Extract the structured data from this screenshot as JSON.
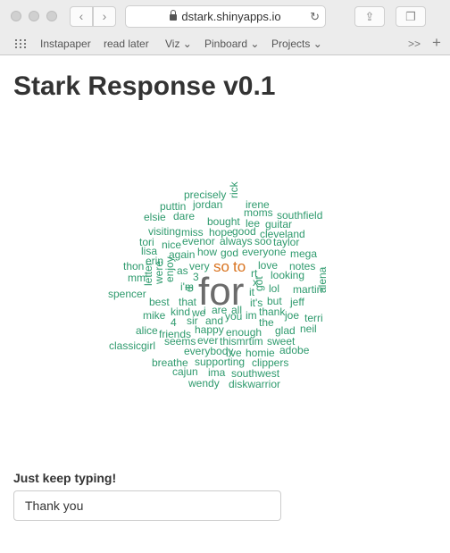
{
  "browser": {
    "address": "dstark.shinyapps.io",
    "bookmarks": [
      {
        "label": "Instapaper",
        "menu": false
      },
      {
        "label": "read later",
        "menu": false
      },
      {
        "label": "Viz",
        "menu": true
      },
      {
        "label": "Pinboard",
        "menu": true
      },
      {
        "label": "Projects",
        "menu": true
      }
    ],
    "overflow_glyph": ">>",
    "newtab_glyph": "+"
  },
  "page": {
    "title": "Stark Response v0.1",
    "input_label": "Just keep typing!",
    "input_value": "Thank you"
  },
  "colors": {
    "cloud_green": "#2e9a6d",
    "cloud_orange": "#d9731f",
    "cloud_gray": "#6b6b6b"
  },
  "chart_data": {
    "type": "wordcloud",
    "words": [
      {
        "text": "for",
        "tier": "top"
      },
      {
        "text": "so",
        "tier": "high"
      },
      {
        "text": "to",
        "tier": "high"
      },
      {
        "text": "precisely",
        "tier": "normal"
      },
      {
        "text": "puttin",
        "tier": "normal"
      },
      {
        "text": "jordan",
        "tier": "normal"
      },
      {
        "text": "rick",
        "tier": "normal"
      },
      {
        "text": "irene",
        "tier": "normal"
      },
      {
        "text": "elsie",
        "tier": "normal"
      },
      {
        "text": "dare",
        "tier": "normal"
      },
      {
        "text": "bought",
        "tier": "normal"
      },
      {
        "text": "moms",
        "tier": "normal"
      },
      {
        "text": "southfield",
        "tier": "normal"
      },
      {
        "text": "lee",
        "tier": "normal"
      },
      {
        "text": "guitar",
        "tier": "normal"
      },
      {
        "text": "visiting",
        "tier": "normal"
      },
      {
        "text": "miss",
        "tier": "normal"
      },
      {
        "text": "hope",
        "tier": "normal"
      },
      {
        "text": "good",
        "tier": "normal"
      },
      {
        "text": "cleveland",
        "tier": "normal"
      },
      {
        "text": "tori",
        "tier": "normal"
      },
      {
        "text": "nice",
        "tier": "normal"
      },
      {
        "text": "evenor",
        "tier": "normal"
      },
      {
        "text": "always",
        "tier": "normal"
      },
      {
        "text": "soo",
        "tier": "normal"
      },
      {
        "text": "taylor",
        "tier": "normal"
      },
      {
        "text": "lisa",
        "tier": "normal"
      },
      {
        "text": "again",
        "tier": "normal"
      },
      {
        "text": "how",
        "tier": "normal"
      },
      {
        "text": "god",
        "tier": "normal"
      },
      {
        "text": "everyone",
        "tier": "normal"
      },
      {
        "text": "mega",
        "tier": "normal"
      },
      {
        "text": "erin",
        "tier": "normal"
      },
      {
        "text": "thon",
        "tier": "normal"
      },
      {
        "text": "letter",
        "tier": "normal"
      },
      {
        "text": "were",
        "tier": "normal"
      },
      {
        "text": "enjoy",
        "tier": "normal"
      },
      {
        "text": "as",
        "tier": "normal"
      },
      {
        "text": "very",
        "tier": "normal"
      },
      {
        "text": "love",
        "tier": "normal"
      },
      {
        "text": "notes",
        "tier": "normal"
      },
      {
        "text": "mm",
        "tier": "normal"
      },
      {
        "text": "3",
        "tier": "normal"
      },
      {
        "text": "rt",
        "tier": "normal"
      },
      {
        "text": "looking",
        "tier": "normal"
      },
      {
        "text": "i'm",
        "tier": "normal"
      },
      {
        "text": "x",
        "tier": "normal"
      },
      {
        "text": "lol",
        "tier": "normal"
      },
      {
        "text": "martin",
        "tier": "normal"
      },
      {
        "text": "alena",
        "tier": "normal"
      },
      {
        "text": "spencer",
        "tier": "normal"
      },
      {
        "text": "d",
        "tier": "normal"
      },
      {
        "text": "it",
        "tier": "normal"
      },
      {
        "text": "got",
        "tier": "normal"
      },
      {
        "text": "best",
        "tier": "normal"
      },
      {
        "text": "that",
        "tier": "normal"
      },
      {
        "text": "it's",
        "tier": "normal"
      },
      {
        "text": "but",
        "tier": "normal"
      },
      {
        "text": "jeff",
        "tier": "normal"
      },
      {
        "text": "kind",
        "tier": "normal"
      },
      {
        "text": "we",
        "tier": "normal"
      },
      {
        "text": "i",
        "tier": "normal"
      },
      {
        "text": "are",
        "tier": "normal"
      },
      {
        "text": "all",
        "tier": "normal"
      },
      {
        "text": "thank",
        "tier": "normal"
      },
      {
        "text": "mike",
        "tier": "normal"
      },
      {
        "text": "joe",
        "tier": "normal"
      },
      {
        "text": "4",
        "tier": "normal"
      },
      {
        "text": "sir",
        "tier": "normal"
      },
      {
        "text": "and",
        "tier": "normal"
      },
      {
        "text": "you",
        "tier": "normal"
      },
      {
        "text": "im",
        "tier": "normal"
      },
      {
        "text": "the",
        "tier": "normal"
      },
      {
        "text": "terri",
        "tier": "normal"
      },
      {
        "text": "alice",
        "tier": "normal"
      },
      {
        "text": "happy",
        "tier": "normal"
      },
      {
        "text": "glad",
        "tier": "normal"
      },
      {
        "text": "neil",
        "tier": "normal"
      },
      {
        "text": "friends",
        "tier": "normal"
      },
      {
        "text": "enough",
        "tier": "normal"
      },
      {
        "text": "seems",
        "tier": "normal"
      },
      {
        "text": "ever",
        "tier": "normal"
      },
      {
        "text": "thismrtim",
        "tier": "normal"
      },
      {
        "text": "sweet",
        "tier": "normal"
      },
      {
        "text": "classicgirl",
        "tier": "normal"
      },
      {
        "text": "everybody",
        "tier": "normal"
      },
      {
        "text": "i've",
        "tier": "normal"
      },
      {
        "text": "homie",
        "tier": "normal"
      },
      {
        "text": "adobe",
        "tier": "normal"
      },
      {
        "text": "breathe",
        "tier": "normal"
      },
      {
        "text": "supporting",
        "tier": "normal"
      },
      {
        "text": "clippers",
        "tier": "normal"
      },
      {
        "text": "cajun",
        "tier": "normal"
      },
      {
        "text": "ima",
        "tier": "normal"
      },
      {
        "text": "southwest",
        "tier": "normal"
      },
      {
        "text": "wendy",
        "tier": "normal"
      },
      {
        "text": "diskwarrior",
        "tier": "normal"
      }
    ]
  }
}
